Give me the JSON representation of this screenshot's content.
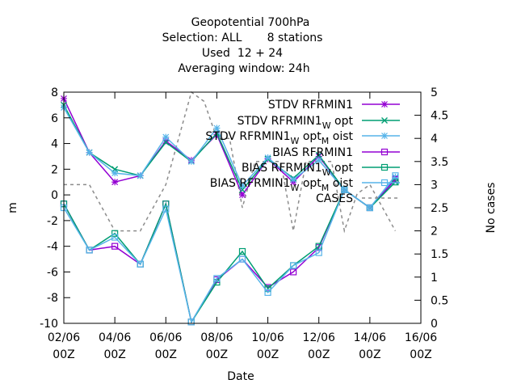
{
  "chart_data": {
    "type": "line",
    "title_lines": [
      "Geopotential 700hPa",
      "Selection: ALL       8 stations",
      "Used  12 + 24",
      "Averaging window: 24h"
    ],
    "xlabel": "Date",
    "ylabel": "m",
    "y2label": "No cases",
    "x_ticks": [
      {
        "day": 2,
        "line1": "02/06",
        "line2": "00Z"
      },
      {
        "day": 4,
        "line1": "04/06",
        "line2": "00Z"
      },
      {
        "day": 6,
        "line1": "06/06",
        "line2": "00Z"
      },
      {
        "day": 8,
        "line1": "08/06",
        "line2": "00Z"
      },
      {
        "day": 10,
        "line1": "10/06",
        "line2": "00Z"
      },
      {
        "day": 12,
        "line1": "12/06",
        "line2": "00Z"
      },
      {
        "day": 14,
        "line1": "14/06",
        "line2": "00Z"
      },
      {
        "day": 16,
        "line1": "16/06",
        "line2": "00Z"
      }
    ],
    "xlim": [
      2,
      16
    ],
    "ylim": [
      -10,
      8
    ],
    "y_ticks": [
      -10,
      -8,
      -6,
      -4,
      -2,
      0,
      2,
      4,
      6,
      8
    ],
    "y2lim": [
      0,
      5
    ],
    "y2_ticks": [
      "0",
      "0.5",
      "1",
      "1.5",
      "2",
      "2.5",
      "3",
      "3.5",
      "4",
      "4.5",
      "5"
    ],
    "legend_position": "top-right",
    "x": [
      2,
      3,
      4,
      5,
      6,
      7,
      8,
      9,
      10,
      11,
      12,
      13,
      14,
      15
    ],
    "series": [
      {
        "name": "STDV RFRMIN1",
        "label_parts": [
          [
            "STDV RFRMIN1",
            ""
          ]
        ],
        "color": "#9400d3",
        "marker": "star",
        "axis": "y1",
        "values": [
          7.5,
          3.3,
          1.0,
          1.5,
          4.2,
          2.7,
          4.7,
          0.0,
          2.8,
          1.0,
          3.0,
          0.4,
          -1.0,
          1.3
        ]
      },
      {
        "name": "STDV RFRMIN1 W opt",
        "label_parts": [
          [
            "STDV RFRMIN1",
            ""
          ],
          [
            "W",
            "sub"
          ],
          [
            " opt",
            ""
          ]
        ],
        "color": "#009e73",
        "marker": "x",
        "axis": "y1",
        "values": [
          7.0,
          3.3,
          2.0,
          1.5,
          4.1,
          2.6,
          4.8,
          0.4,
          2.8,
          1.3,
          3.1,
          0.4,
          -1.0,
          1.0
        ]
      },
      {
        "name": "STDV RFRMIN1 W opt M oist",
        "label_parts": [
          [
            "STDV RFRMIN1",
            ""
          ],
          [
            "W",
            "sub"
          ],
          [
            " opt",
            ""
          ],
          [
            "M",
            "sub"
          ],
          [
            " oist",
            ""
          ]
        ],
        "color": "#56b4e9",
        "marker": "star",
        "axis": "y1",
        "values": [
          6.8,
          3.3,
          1.7,
          1.5,
          4.5,
          2.6,
          5.2,
          0.7,
          2.9,
          1.2,
          2.7,
          0.4,
          -1.0,
          1.4
        ]
      },
      {
        "name": "BIAS RFRMIN1",
        "label_parts": [
          [
            "BIAS RFRMIN1",
            ""
          ]
        ],
        "color": "#9400d3",
        "marker": "square",
        "axis": "y1",
        "values": [
          -0.7,
          -4.3,
          -4.0,
          -5.4,
          -0.7,
          -9.9,
          -6.6,
          -5.0,
          -7.2,
          -6.0,
          -4.1,
          0.4,
          -1.0,
          1.2
        ]
      },
      {
        "name": "BIAS RFRMIN1 W opt",
        "label_parts": [
          [
            "BIAS RFRMIN1",
            ""
          ],
          [
            "W",
            "sub"
          ],
          [
            " opt",
            ""
          ]
        ],
        "color": "#009e73",
        "marker": "square",
        "axis": "y1",
        "values": [
          -0.7,
          -4.3,
          -3.0,
          -5.4,
          -0.7,
          -9.9,
          -6.8,
          -4.4,
          -7.3,
          -5.5,
          -4.0,
          0.4,
          -1.0,
          1.0
        ]
      },
      {
        "name": "BIAS RFRMIN1 W opt M oist",
        "label_parts": [
          [
            "BIAS RFRMIN1",
            ""
          ],
          [
            "W",
            "sub"
          ],
          [
            " opt",
            ""
          ],
          [
            "M",
            "sub"
          ],
          [
            " oist",
            ""
          ]
        ],
        "color": "#56b4e9",
        "marker": "square",
        "axis": "y1",
        "values": [
          -1.0,
          -4.3,
          -3.3,
          -5.4,
          -1.1,
          -9.9,
          -6.5,
          -5.0,
          -7.6,
          -5.5,
          -4.5,
          0.4,
          -1.0,
          1.5
        ]
      },
      {
        "name": "CASES",
        "label_parts": [
          [
            "CASES",
            ""
          ]
        ],
        "color": "#8c8c8c",
        "marker": "none",
        "dashed": true,
        "axis": "y2",
        "x": [
          2,
          3,
          3.5,
          4,
          5,
          6,
          6.5,
          7,
          7.5,
          8,
          8.5,
          9,
          9.5,
          10,
          10.5,
          11,
          11.5,
          12,
          12.5,
          13,
          13.5,
          14,
          14.5,
          15
        ],
        "values": [
          3,
          3,
          2.5,
          2,
          2,
          3,
          4,
          5,
          4.8,
          4,
          4,
          2.5,
          3.5,
          3.5,
          3.5,
          2,
          3.5,
          3.5,
          3.5,
          2,
          2.8,
          3,
          2.5,
          2
        ]
      }
    ]
  }
}
